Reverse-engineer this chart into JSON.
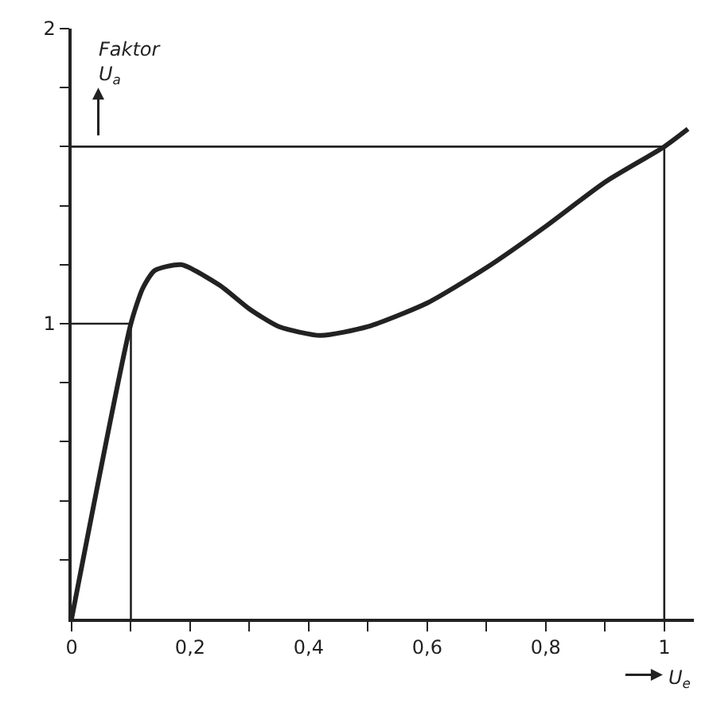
{
  "chart_data": {
    "type": "line",
    "ylabel": "Faktor\nU$_{a}$",
    "xlabel": "U$_{e}$",
    "series": [
      {
        "color": "#222222",
        "x": [
          0,
          0.1,
          0.12,
          0.14,
          0.185,
          0.25,
          0.3,
          0.35,
          0.42,
          0.5,
          0.6,
          0.7,
          0.8,
          0.9,
          1.0,
          1.04
        ],
        "values": [
          0,
          1,
          1.12,
          1.18,
          1.2,
          1.13,
          1.05,
          0.99,
          0.96,
          0.99,
          1.07,
          1.19,
          1.33,
          1.48,
          1.6,
          1.66
        ]
      },
      {
        "color": "#222222",
        "x": [
          0,
          0.1,
          0.1
        ],
        "values": [
          1,
          1,
          0
        ]
      },
      {
        "color": "#222222",
        "x": [
          0,
          1,
          1
        ],
        "values": [
          1.6,
          1.6,
          0
        ]
      }
    ],
    "xlim": [
      0,
      1.05
    ],
    "ylim": [
      0,
      2
    ],
    "xticks": [
      0,
      {
        "value": 0.1,
        "label": null
      },
      {
        "value": 0.2,
        "label": "0,2"
      },
      {
        "value": 0.3,
        "label": null
      },
      {
        "value": 0.4,
        "label": "0,4"
      },
      {
        "value": 0.5,
        "label": null
      },
      {
        "value": 0.6,
        "label": "0,6"
      },
      {
        "value": 0.7,
        "label": null
      },
      {
        "value": 0.8,
        "label": "0,8"
      },
      {
        "value": 0.9,
        "label": null
      },
      1
    ],
    "yticks": [
      {
        "value": 0.2,
        "label": null
      },
      {
        "value": 0.4,
        "label": null
      },
      {
        "value": 0.6,
        "label": null
      },
      {
        "value": 0.8,
        "label": null
      },
      1,
      {
        "value": 1.2,
        "label": null
      },
      {
        "value": 1.4,
        "label": null
      },
      {
        "value": 1.6,
        "label": null
      },
      {
        "value": 1.8,
        "label": null
      },
      2
    ],
    "marker": "none",
    "line_style": "solid"
  }
}
